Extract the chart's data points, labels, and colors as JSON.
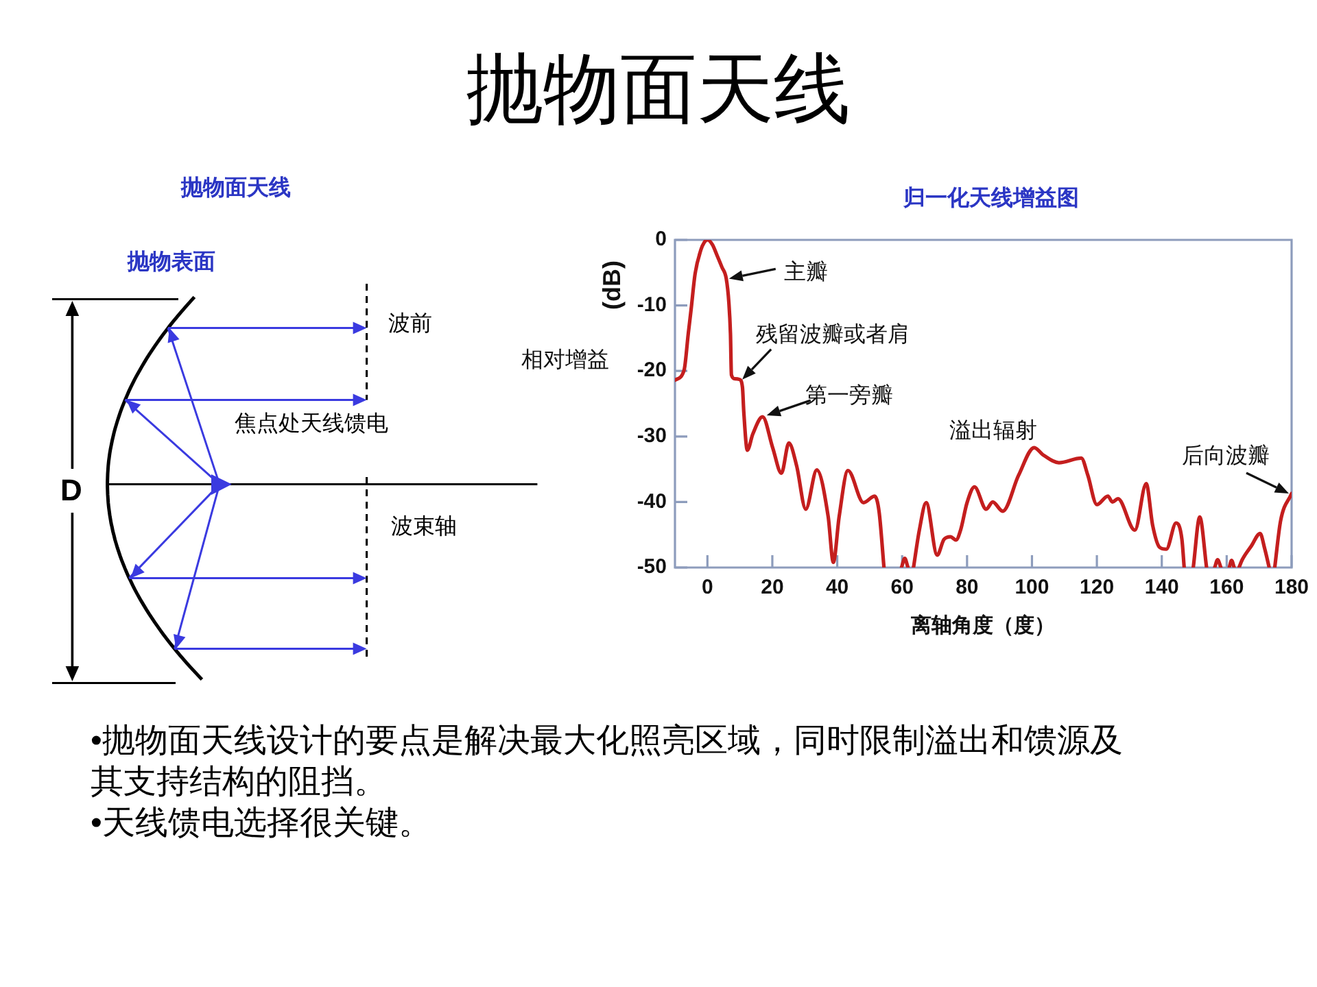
{
  "chart_data": [
    {
      "type": "other",
      "title": "抛物面天线"
    },
    {
      "type": "other",
      "title": "抛物面天线",
      "annotations": [
        "抛物表面",
        "波前",
        "焦点处天线馈电",
        "波束轴",
        "D"
      ]
    },
    {
      "type": "line",
      "title": "归一化天线增益图",
      "xlabel": "离轴角度（度）",
      "ylabel": "相对增益 (dB)",
      "x": [
        -10,
        -7.2,
        -5.9,
        -5,
        -3.8,
        -2,
        -1,
        0,
        1.5,
        3,
        4.5,
        5.8,
        6.6,
        7.1,
        7.4,
        8.5,
        9.9,
        10.8,
        11.2,
        12.3,
        14,
        17,
        20.1,
        22.8,
        25.1,
        27.5,
        30.3,
        33.7,
        37.2,
        38.8,
        40.6,
        43.3,
        48.1,
        51.5,
        52.9,
        54.4,
        57,
        59.8,
        60.8,
        61.8,
        62.6,
        63.5,
        65.3,
        67.4,
        70.8,
        72.9,
        74.9,
        76.6,
        78,
        80,
        82.3,
        85.9,
        87.9,
        91,
        95.9,
        100.7,
        103.4,
        108.3,
        115.2,
        117.2,
        120,
        123.4,
        124.8,
        126.5,
        131.7,
        135.2,
        137.2,
        139.3,
        141.4,
        144.4,
        146.2,
        146.9,
        148.3,
        149.7,
        151.7,
        153.8,
        155,
        156.3,
        157.2,
        158.2,
        159.5,
        160.8,
        161.5,
        162.3,
        163,
        163.8,
        164.8,
        167.6,
        170.3,
        171.7,
        173.1,
        174,
        174.8,
        176.6,
        180
      ],
      "series": [
        {
          "color": "#c41e1e",
          "values": [
            -21.4,
            -19.9,
            -14.3,
            -10.5,
            -5.2,
            -1.5,
            -0.4,
            0,
            -0.7,
            -2.4,
            -4.2,
            -5.9,
            -9.5,
            -14.3,
            -20.6,
            -21.2,
            -21.3,
            -22.5,
            -26.2,
            -32.1,
            -29.6,
            -27,
            -31.7,
            -35.6,
            -31,
            -34.5,
            -41.1,
            -35.1,
            -42.2,
            -49.2,
            -42.2,
            -35.2,
            -40.1,
            -39.1,
            -41.5,
            -50,
            null,
            -50,
            -48.6,
            -50,
            null,
            -50,
            -44.3,
            -40.1,
            -48.1,
            -45.7,
            -45.3,
            -45.8,
            -44.3,
            -40.1,
            -37.7,
            -41.1,
            -40,
            -41.4,
            -35.9,
            -31.7,
            -32.8,
            -34,
            -33.3,
            -35.9,
            -40.4,
            -39.1,
            -40,
            -39.5,
            -44.3,
            -37.2,
            -43.6,
            -46.9,
            -47.2,
            -43.2,
            -45.7,
            -50,
            null,
            -50,
            -42.3,
            -50,
            null,
            -50,
            -48.8,
            -50,
            null,
            -50,
            -48.9,
            -50,
            null,
            -50,
            -48.8,
            -46.7,
            -44.8,
            -47.1,
            -50,
            null,
            -50,
            -42.9,
            -38.7
          ]
        }
      ],
      "xlim": [
        -10,
        180
      ],
      "xticks": [
        0,
        20,
        40,
        60,
        80,
        100,
        120,
        140,
        160,
        180
      ],
      "ylim": [
        -50,
        0
      ],
      "yticks": [
        -50,
        -40,
        -30,
        -20,
        -10,
        0
      ],
      "marker": "none",
      "annotations": [
        {
          "text": "主瓣",
          "x": 5.8,
          "y": -5.9
        },
        {
          "text": "残留波瓣或者肩",
          "x": 9.9,
          "y": -21.3
        },
        {
          "text": "第一旁瓣",
          "x": 17,
          "y": -27
        },
        {
          "text": "溢出辐射",
          "x": 100.7,
          "y": -31.7
        },
        {
          "text": "后向波瓣",
          "x": 180,
          "y": -38.7
        }
      ]
    },
    {
      "type": "other",
      "annotations": [
        "•抛物面天线设计的要点是解决最大化照亮区域，同时限制溢出和馈源及其支持结构的阻挡。",
        "•天线馈电选择很关键。"
      ]
    }
  ]
}
